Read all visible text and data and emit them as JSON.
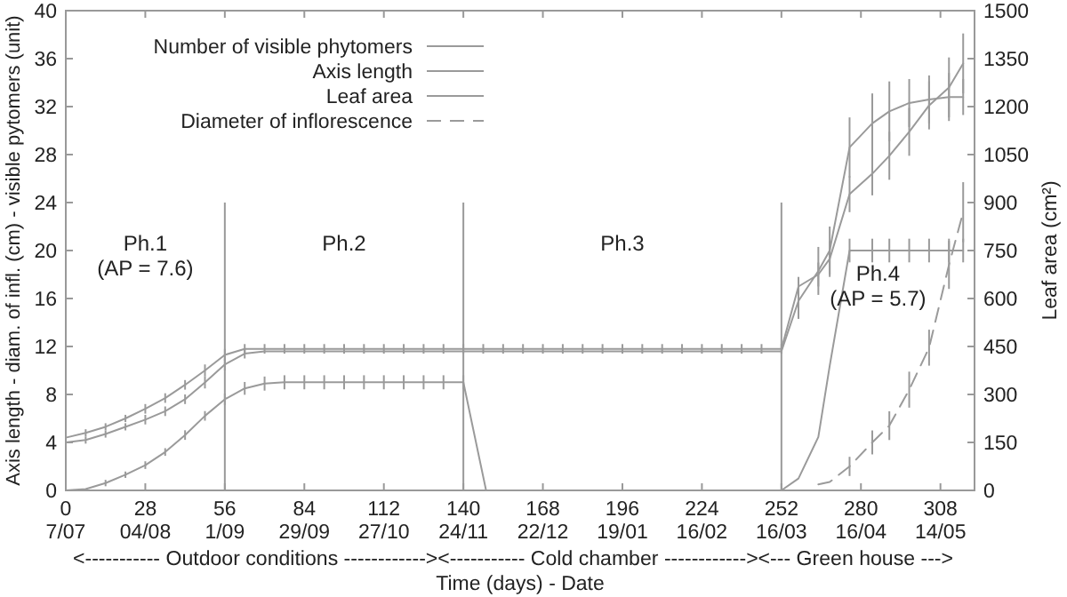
{
  "chart_data": {
    "type": "line",
    "xlabel": "Time (days) - Date",
    "ylabel": "Axis length - diam. of infl. (cm) - visible pytomers (unit)",
    "y2label": "Leaf area (cm²)",
    "xlim": [
      0,
      320
    ],
    "xticks": [
      0,
      28,
      56,
      84,
      112,
      140,
      168,
      196,
      224,
      252,
      280,
      308
    ],
    "ylim": [
      0,
      40
    ],
    "yticks": [
      0,
      4,
      8,
      12,
      16,
      20,
      24,
      28,
      32,
      36,
      40
    ],
    "y2lim": [
      0,
      1500
    ],
    "y2ticks": [
      0,
      150,
      300,
      450,
      600,
      750,
      900,
      1050,
      1200,
      1350,
      1500
    ],
    "legend": "top left",
    "grid": false,
    "series": [
      {
        "name": "Number of visible phytomers",
        "color": "#9a9a9a",
        "line_style": "solid",
        "x": [
          0,
          7,
          14,
          21,
          28,
          35,
          42,
          49,
          56,
          63,
          70,
          77,
          84,
          91,
          98,
          105,
          112,
          119,
          126,
          133,
          140,
          147,
          154,
          161,
          168,
          175,
          182,
          189,
          196,
          203,
          210,
          217,
          224,
          231,
          238,
          245,
          252,
          258,
          265,
          269,
          276,
          284,
          290,
          297,
          304,
          311,
          316
        ],
        "values": [
          4.4,
          4.8,
          5.3,
          6.0,
          6.8,
          7.7,
          8.8,
          10,
          11.3,
          11.8,
          11.8,
          11.8,
          11.8,
          11.8,
          11.8,
          11.8,
          11.8,
          11.8,
          11.8,
          11.8,
          11.8,
          11.8,
          11.8,
          11.8,
          11.8,
          11.8,
          11.8,
          11.8,
          11.8,
          11.8,
          11.8,
          11.8,
          11.8,
          11.8,
          11.8,
          11.8,
          11.8,
          17,
          18,
          19.3,
          24.7,
          26.4,
          27.9,
          29.9,
          32.1,
          33.6,
          35.6
        ],
        "errors": [
          0.3,
          0.3,
          0.3,
          0.3,
          0.4,
          0.4,
          0.4,
          0.5,
          0.5,
          0.4,
          0.4,
          0.4,
          0.4,
          0.4,
          0.4,
          0.4,
          0.4,
          0.4,
          0.4,
          0.4,
          0.4,
          0.4,
          0.4,
          0.4,
          0.4,
          0.4,
          0.4,
          0.4,
          0.4,
          0.4,
          0.4,
          0.4,
          0.4,
          0.4,
          0.4,
          0.4,
          0.4,
          0.8,
          1,
          1.5,
          1.5,
          1.8,
          2,
          2,
          2,
          2.5,
          2.5
        ]
      },
      {
        "name": "Axis length",
        "color": "#9a9a9a",
        "line_style": "solid",
        "x": [
          0,
          7,
          14,
          21,
          28,
          35,
          42,
          49,
          56,
          63,
          70,
          77,
          84,
          91,
          98,
          105,
          112,
          119,
          126,
          133,
          140,
          147,
          154,
          161,
          168,
          175,
          182,
          189,
          196,
          203,
          210,
          217,
          224,
          231,
          238,
          245,
          252,
          258,
          265,
          269,
          276,
          284,
          290,
          297,
          304,
          311,
          316
        ],
        "values": [
          4.0,
          4.2,
          4.7,
          5.3,
          5.9,
          6.6,
          7.6,
          9.0,
          10.5,
          11.4,
          11.6,
          11.6,
          11.6,
          11.6,
          11.6,
          11.6,
          11.6,
          11.6,
          11.6,
          11.6,
          11.6,
          11.6,
          11.6,
          11.6,
          11.6,
          11.6,
          11.6,
          11.6,
          11.6,
          11.6,
          11.6,
          11.6,
          11.6,
          11.6,
          11.6,
          11.6,
          11.6,
          15.8,
          18.3,
          20,
          28.6,
          30.6,
          31.6,
          32.3,
          32.6,
          32.8,
          32.8
        ],
        "errors": [
          0.3,
          0.3,
          0.3,
          0.3,
          0.4,
          0.4,
          0.4,
          0.5,
          0.5,
          0.4,
          null,
          null,
          null,
          null,
          null,
          null,
          null,
          null,
          null,
          null,
          null,
          null,
          null,
          null,
          null,
          null,
          null,
          null,
          null,
          null,
          null,
          null,
          null,
          null,
          null,
          null,
          null,
          1.5,
          2,
          2,
          2.5,
          2.5,
          2.5,
          2,
          2,
          2,
          1.5
        ]
      },
      {
        "name": "Leaf area",
        "color": "#9a9a9a",
        "line_style": "solid",
        "axis": "y2",
        "x": [
          0,
          7,
          14,
          21,
          28,
          35,
          42,
          49,
          56,
          63,
          70,
          77,
          84,
          91,
          98,
          105,
          112,
          119,
          126,
          133,
          140,
          148,
          252,
          258,
          265,
          269,
          276,
          284,
          290,
          297,
          304,
          311,
          316
        ],
        "values": [
          0,
          4,
          23,
          49,
          79,
          120,
          173,
          233,
          285,
          319,
          334,
          338,
          338,
          338,
          338,
          338,
          338,
          338,
          338,
          338,
          338,
          0,
          0,
          37,
          167,
          389,
          750,
          750,
          750,
          750,
          750,
          750,
          750
        ],
        "errors": [
          null,
          null,
          10,
          10,
          12,
          12,
          15,
          15,
          18,
          20,
          22,
          22,
          22,
          22,
          22,
          22,
          22,
          22,
          22,
          22,
          22,
          null,
          null,
          null,
          null,
          null,
          37,
          37,
          37,
          37,
          37,
          37,
          37
        ]
      },
      {
        "name": "Diameter of inflorescence",
        "color": "#9a9a9a",
        "line_style": "dashed",
        "x": [
          265,
          269,
          276,
          284,
          290,
          297,
          304,
          311,
          316
        ],
        "values": [
          0.5,
          0.7,
          2,
          4,
          5.4,
          8.4,
          11.9,
          18.8,
          23.2
        ],
        "errors": [
          null,
          null,
          0.8,
          1,
          1.2,
          1.5,
          1.5,
          2,
          2.5
        ]
      }
    ],
    "ref_lines": [
      {
        "axis": "x",
        "value": 56,
        "color": "#9a9a9a"
      },
      {
        "axis": "x",
        "value": 140,
        "color": "#9a9a9a"
      },
      {
        "axis": "x",
        "value": 252,
        "color": "#9a9a9a"
      }
    ],
    "annotations": [
      "Ph.1\n(AP = 7.6)",
      "Ph.2",
      "Ph.3",
      "Ph.4\n(AP = 5.7)",
      "7/07",
      "04/08",
      "1/09",
      "29/09",
      "27/10",
      "24/11",
      "22/12",
      "19/01",
      "16/02",
      "16/03",
      "16/04",
      "14/05",
      "<-----------   Outdoor conditions   ------------><-----------   Cold chamber   ------------><---   Green house   --->"
    ]
  }
}
